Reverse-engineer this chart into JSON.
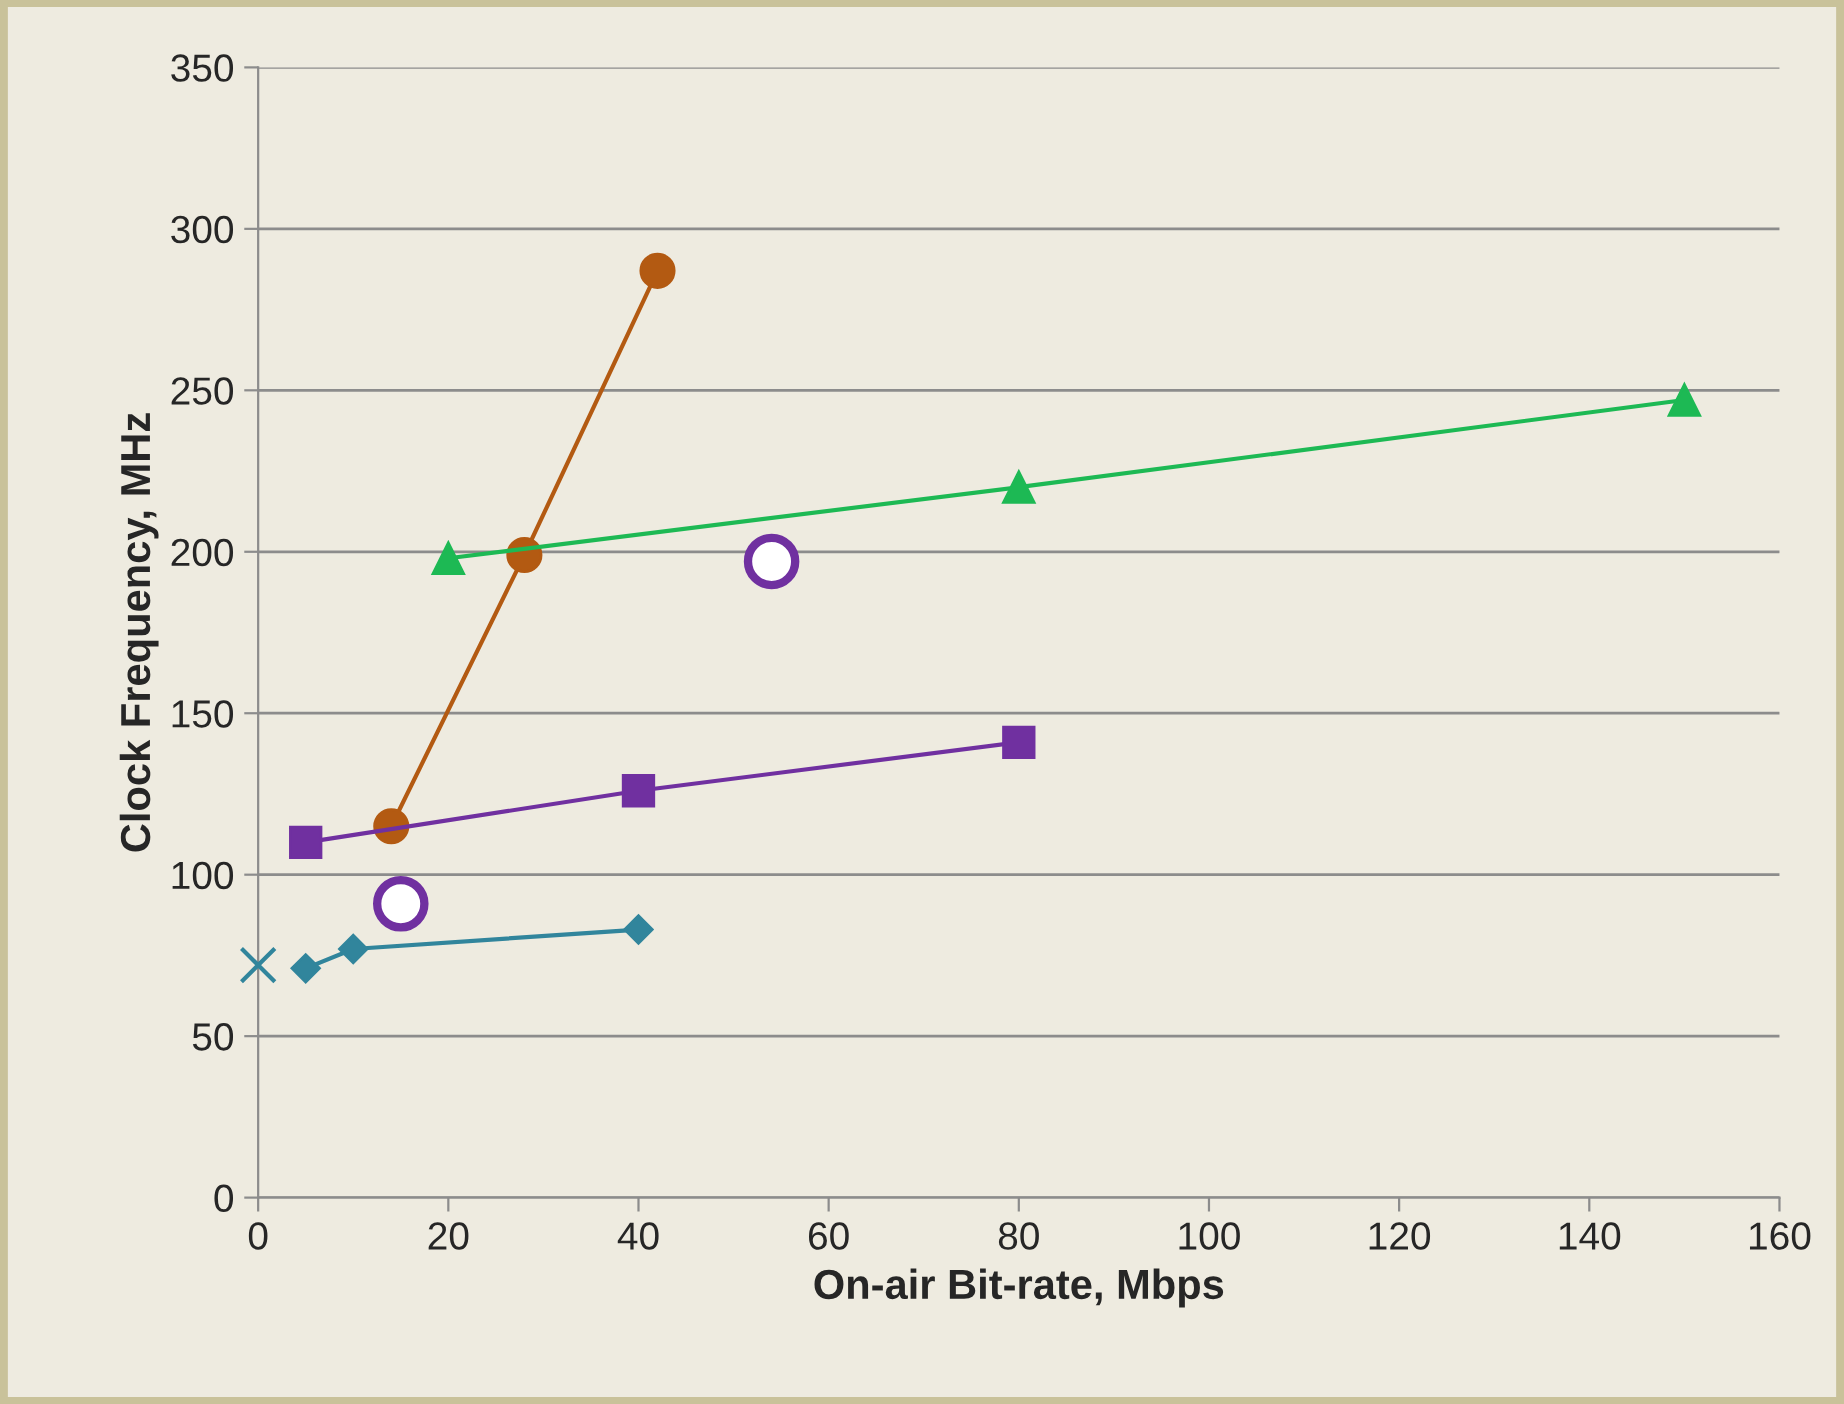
{
  "chart_data": {
    "type": "line",
    "xlabel": "On-air Bit-rate, Mbps",
    "ylabel": "Clock Frequency, MHz",
    "xlim": [
      0,
      160
    ],
    "xticks": [
      0,
      20,
      40,
      60,
      80,
      100,
      120,
      140,
      160
    ],
    "ylim": [
      0,
      350
    ],
    "yticks": [
      0,
      50,
      100,
      150,
      200,
      250,
      300,
      350
    ],
    "grid": "y",
    "legend": false,
    "series": [
      {
        "color": "#b35a12",
        "marker": "circle",
        "line_style": "solid",
        "x": [
          14,
          28,
          42
        ],
        "values": [
          115,
          199,
          287
        ]
      },
      {
        "color": "#1db954",
        "marker": "triangle",
        "line_style": "solid",
        "x": [
          20,
          80,
          150
        ],
        "values": [
          198,
          220,
          247
        ]
      },
      {
        "color": "#7030a0",
        "marker": "square",
        "line_style": "solid",
        "x": [
          5,
          40,
          80
        ],
        "values": [
          110,
          126,
          141
        ]
      },
      {
        "type": "scatter",
        "color": "#7030a0",
        "marker": "circle",
        "x": [
          15,
          54
        ],
        "values": [
          91,
          197
        ]
      },
      {
        "color": "#31859c",
        "marker": "diamond",
        "line_style": "solid",
        "x": [
          5,
          10,
          40
        ],
        "values": [
          71,
          77,
          83
        ]
      },
      {
        "type": "scatter",
        "color": "#31859c",
        "marker": "cross",
        "x": [
          0
        ],
        "values": [
          72
        ]
      }
    ]
  }
}
